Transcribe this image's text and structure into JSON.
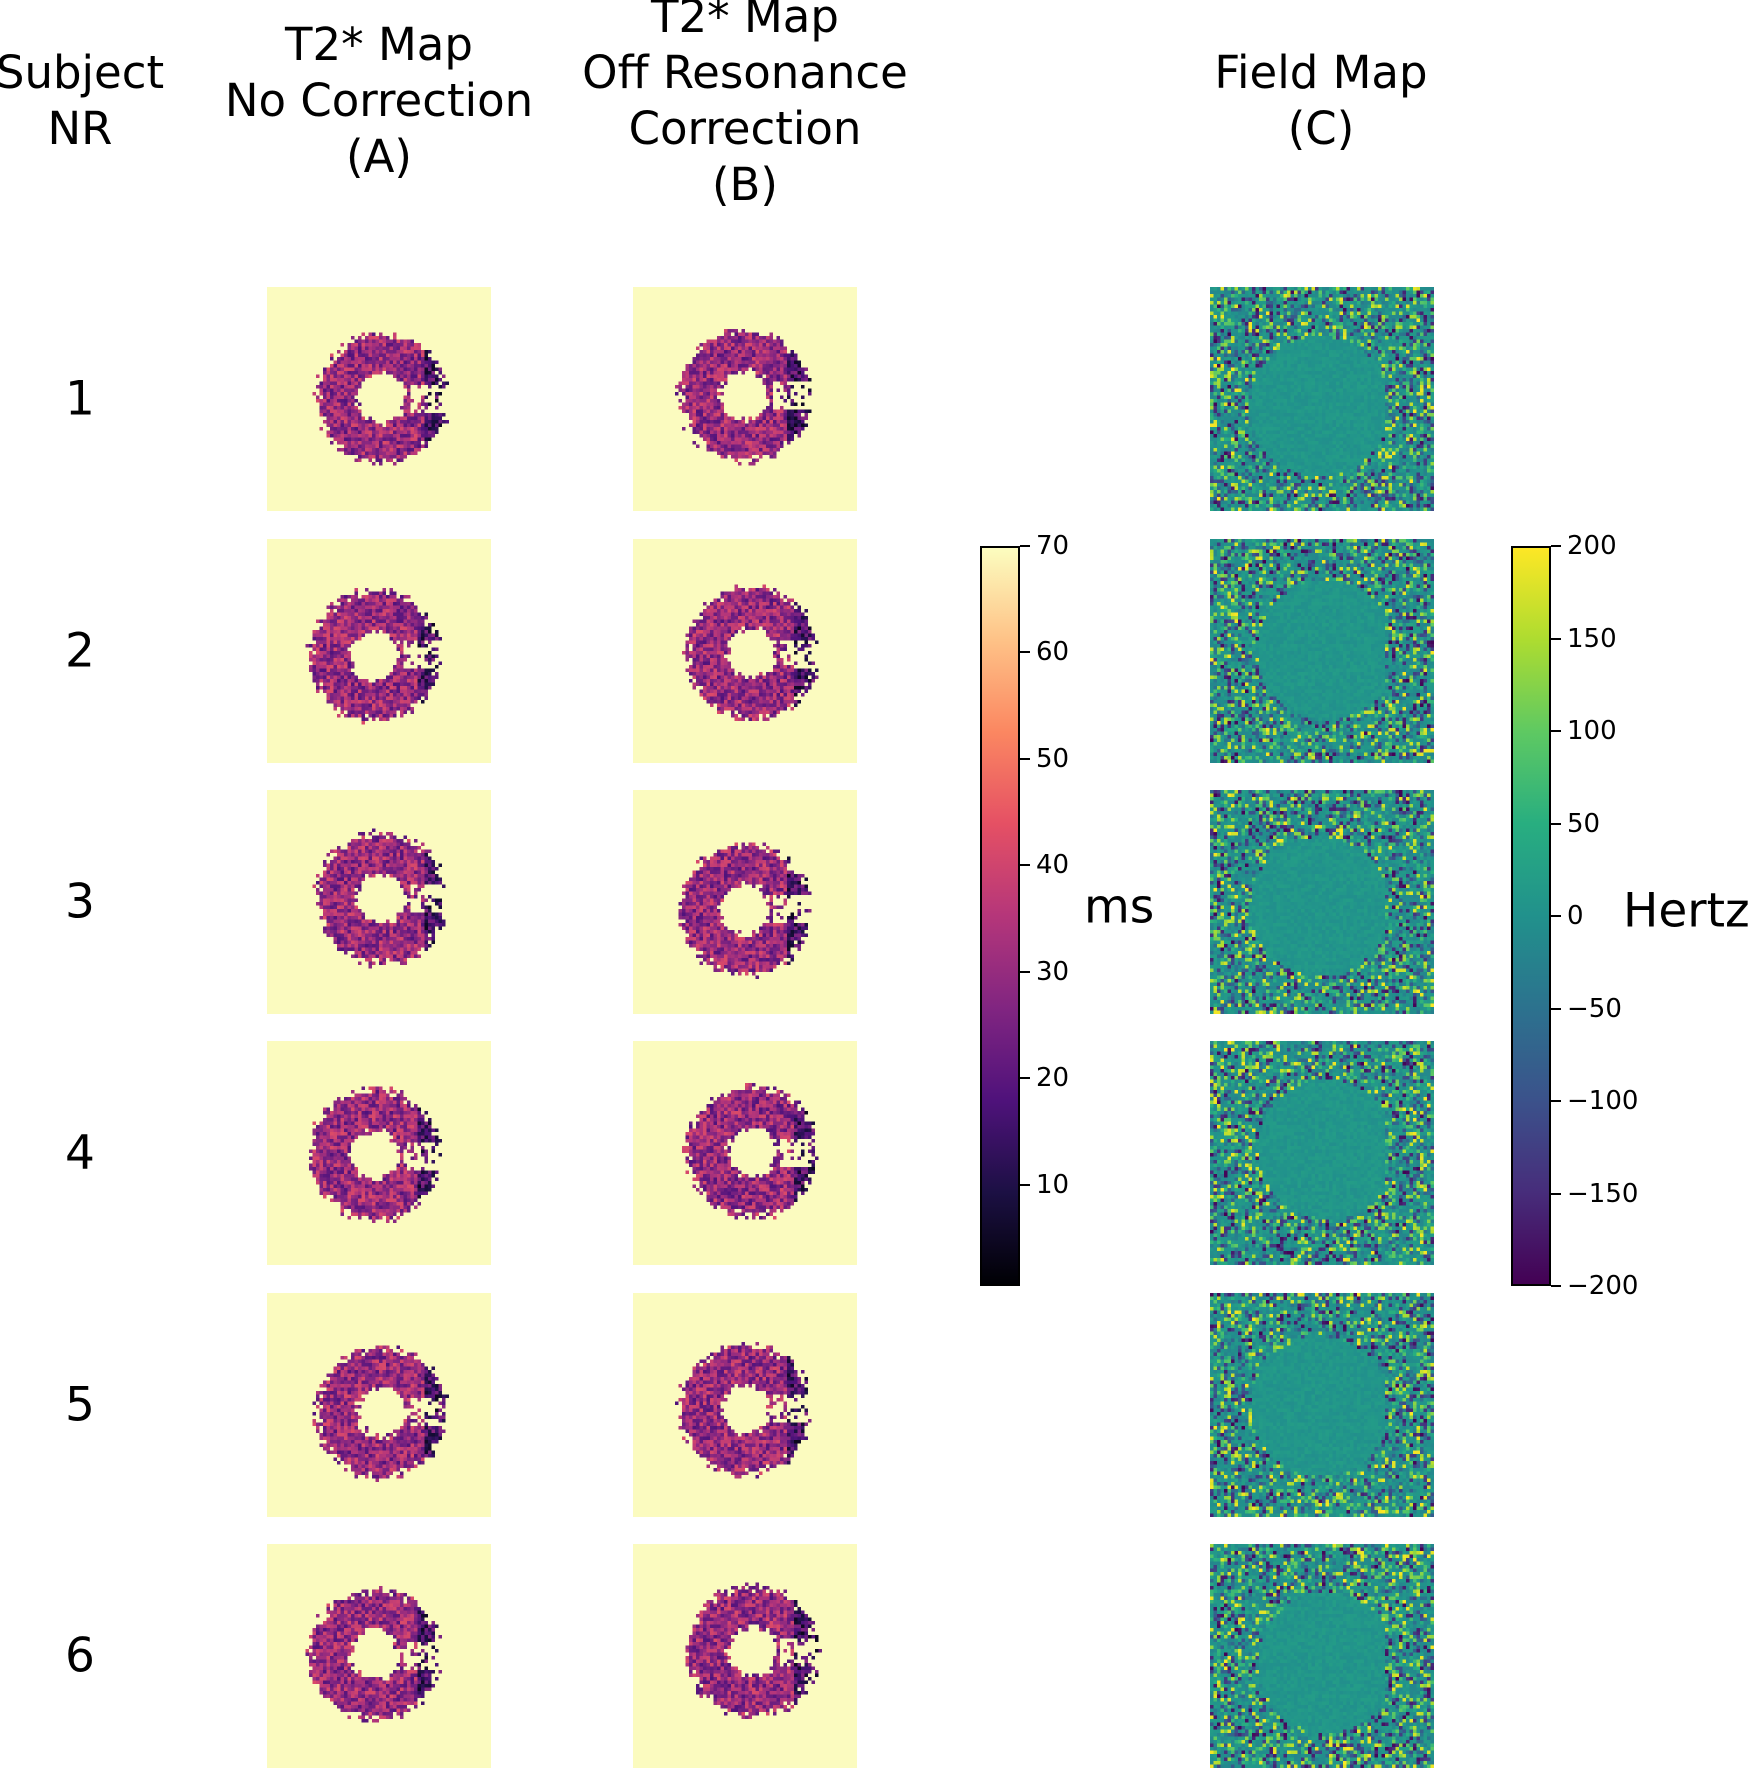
{
  "headers": {
    "subject": [
      "Subject",
      "NR"
    ],
    "col_a": [
      "T2* Map",
      "No Correction",
      "(A)"
    ],
    "col_b": [
      "T2* Map",
      "Off Resonance",
      "Correction",
      "(B)"
    ],
    "col_c": [
      "Field Map",
      "(C)"
    ]
  },
  "subjects": [
    "1",
    "2",
    "3",
    "4",
    "5",
    "6"
  ],
  "colorbar_ms": {
    "label": "ms",
    "colormap": "magma",
    "range": [
      0.5,
      70
    ],
    "ticks": [
      "10",
      "20",
      "30",
      "40",
      "50",
      "60",
      "70"
    ],
    "background_color": "#fbfbbf"
  },
  "colorbar_hz": {
    "label": "Hertz",
    "colormap": "viridis",
    "range": [
      -200,
      200
    ],
    "ticks": [
      "−200",
      "−150",
      "−100",
      "−50",
      "0",
      "50",
      "100",
      "150",
      "200"
    ]
  }
}
